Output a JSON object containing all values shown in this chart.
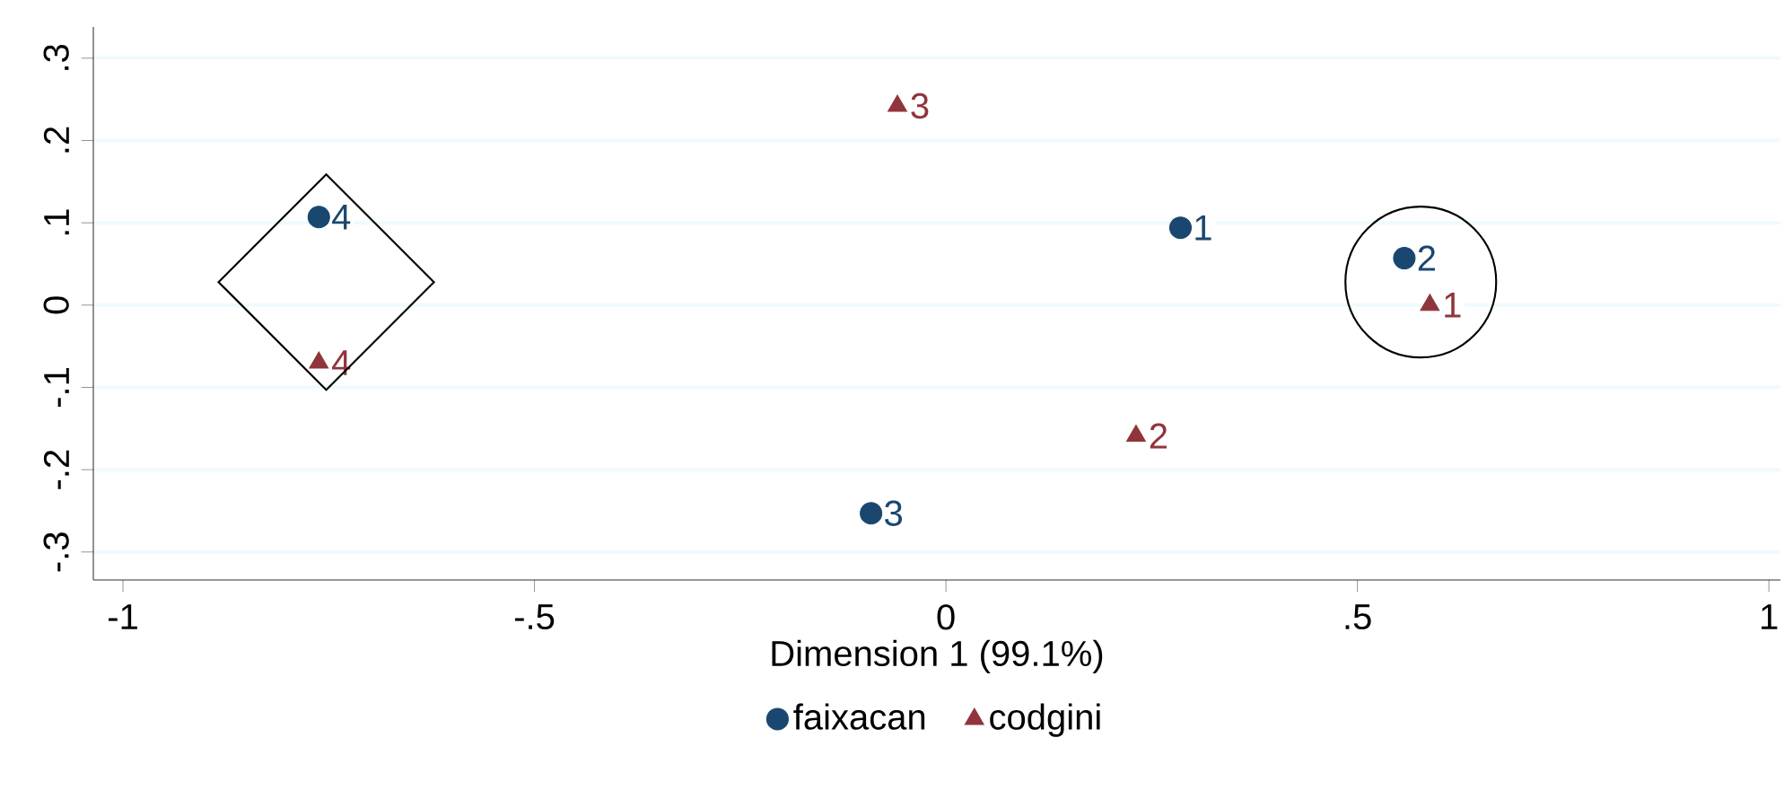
{
  "chart_data": {
    "type": "scatter",
    "xlabel": "Dimension 1 (99.1%)",
    "xlim": [
      -1.036,
      1.014
    ],
    "ylim": [
      -0.334,
      0.338
    ],
    "xticks": [
      {
        "value": -1,
        "label": "-1"
      },
      {
        "value": -0.5,
        "label": "-.5"
      },
      {
        "value": 0,
        "label": "0"
      },
      {
        "value": 0.5,
        "label": ".5"
      },
      {
        "value": 1,
        "label": "1"
      }
    ],
    "yticks": [
      {
        "value": -0.3,
        "label": "-.3"
      },
      {
        "value": -0.2,
        "label": "-.2"
      },
      {
        "value": -0.1,
        "label": "-.1"
      },
      {
        "value": 0,
        "label": "0"
      },
      {
        "value": 0.1,
        "label": ".1"
      },
      {
        "value": 0.2,
        "label": ".2"
      },
      {
        "value": 0.3,
        "label": ".3"
      }
    ],
    "grid": "y",
    "legend": "bottom",
    "series": [
      {
        "name": "faixacan",
        "color": "#1a476f",
        "marker": "circle",
        "x": [
          0.285,
          0.557,
          -0.091,
          -0.762
        ],
        "values": [
          0.094,
          0.057,
          -0.253,
          0.107
        ]
      },
      {
        "name": "codgini",
        "color": "#90353b",
        "marker": "triangle",
        "x": [
          0.588,
          0.231,
          -0.059,
          -0.762
        ],
        "values": [
          0.0,
          -0.159,
          0.242,
          -0.07
        ]
      }
    ],
    "annotations": [
      {
        "text": "1",
        "x": 0.285,
        "y": 0.094
      },
      {
        "text": "2",
        "x": 0.557,
        "y": 0.057
      },
      {
        "text": "3",
        "x": -0.091,
        "y": -0.253
      },
      {
        "text": "4",
        "x": -0.762,
        "y": 0.107
      },
      {
        "text": "1",
        "x": 0.588,
        "y": 0.0
      },
      {
        "text": "2",
        "x": 0.231,
        "y": -0.159
      },
      {
        "text": "3",
        "x": -0.059,
        "y": 0.242
      },
      {
        "text": "4",
        "x": -0.762,
        "y": -0.07
      }
    ]
  }
}
